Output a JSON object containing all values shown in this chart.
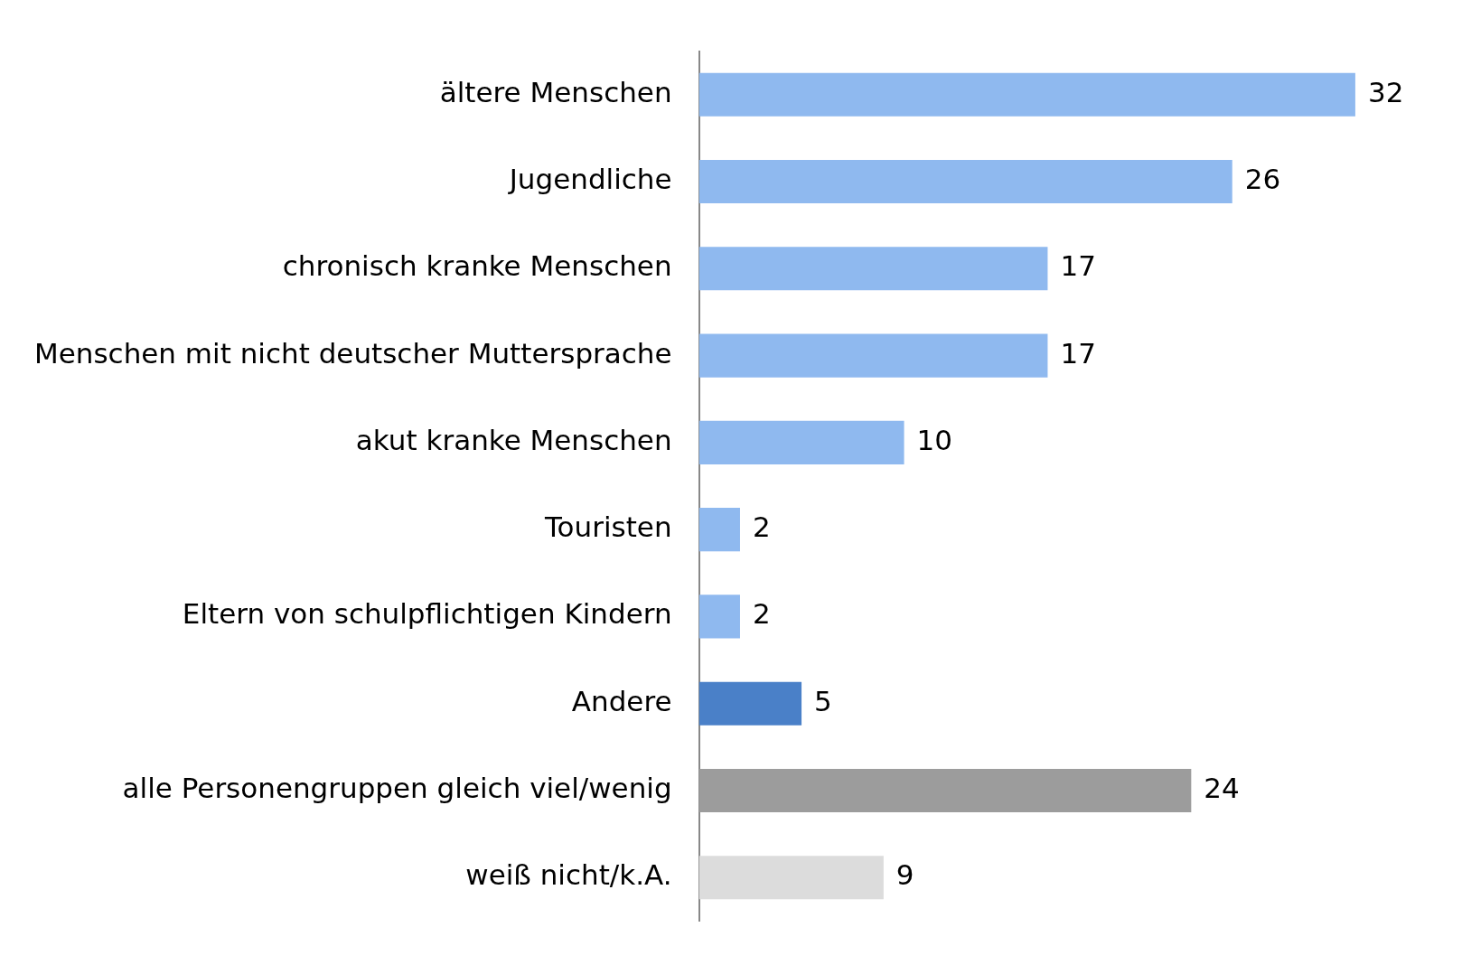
{
  "chart_data": {
    "type": "bar",
    "orientation": "horizontal",
    "categories": [
      "ältere Menschen",
      "Jugendliche",
      "chronisch kranke Menschen",
      "Menschen mit nicht deutscher Muttersprache",
      "akut kranke Menschen",
      "Touristen",
      "Eltern von schulpflichtigen Kindern",
      "Andere",
      "alle Personengruppen gleich viel/wenig",
      "weiß nicht/k.A."
    ],
    "values": [
      32,
      26,
      17,
      17,
      10,
      2,
      2,
      5,
      24,
      9
    ],
    "colors": [
      "#8fb9ef",
      "#8fb9ef",
      "#8fb9ef",
      "#8fb9ef",
      "#8fb9ef",
      "#8fb9ef",
      "#8fb9ef",
      "#4a80c8",
      "#9c9c9c",
      "#dcdcdc"
    ],
    "data_labels": true,
    "legend": false
  }
}
